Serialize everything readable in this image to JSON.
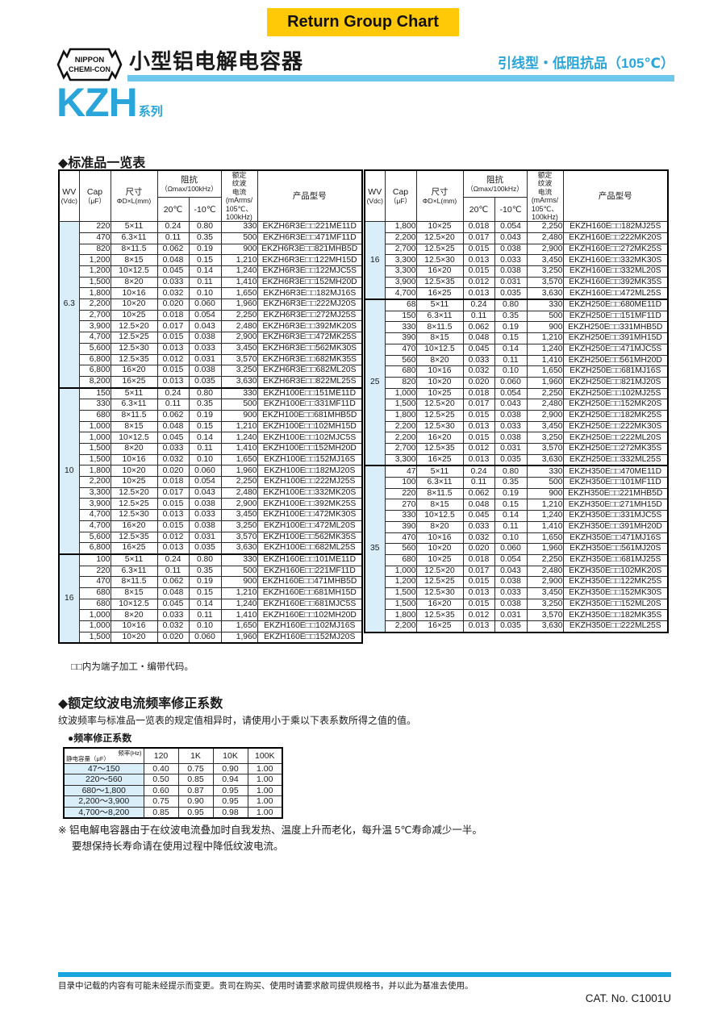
{
  "page": {
    "return_button": "Return Group Chart",
    "title": "小型铝电解电容器",
    "subtitle": "引线型・低阻抗品（105℃）",
    "series_name": "KZH",
    "series_suffix": "系列",
    "section1_title": "◆标准品一览表",
    "table_note": "□□内为端子加工・编带代码。",
    "section2_title": "◆额定纹波电流频率修正系数",
    "section2_desc": "纹波频率与标准品一览表的规定值相异时，请使用小于乘以下表系数所得之值的值。",
    "freq_label": "●频率修正系数",
    "note_line1": "※ 铝电解电容器由于在纹波电流叠加时自我发热、温度上升而老化，每升温 5℃寿命减少一半。",
    "note_line2": "要想保持长寿命请在使用过程中降低纹波电流。",
    "footer_disclaimer": "目录中记载的内容有可能未经提示而变更。贵司在购买、使用时请要求敝司提供规格书，并以此为基准去使用。",
    "footer_cat": "CAT. No. C1001U"
  },
  "logo": {
    "line1": "NIPPON",
    "line2": "CHEMI-CON"
  },
  "colors": {
    "accent_cyan": "#29a5da",
    "bar_cyan": "#6fc7ec",
    "footer_cyan": "#18a5de",
    "button_yellow": "#ffc908",
    "cell_blue": "#d9eef9"
  },
  "spec_header": {
    "wv_l1": "WV",
    "wv_l2": "(Vdc)",
    "cap_l1": "Cap",
    "cap_l2": "（μF）",
    "size_l1": "尺寸",
    "size_l2": "ΦD×L(mm)",
    "imp_l1": "阻抗",
    "imp_l2": "（Ωmax/100kHz）",
    "t20": "20℃",
    "t10": "-10℃",
    "ripple": "额定\n纹波\n电流\n(mArms/\n105℃、\n100kHz)",
    "part": "产品型号"
  },
  "spec_tables": {
    "left": {
      "groups": [
        {
          "wv": "6.3",
          "rows": [
            [
              "220",
              "5×11",
              "0.24",
              "0.80",
              "330",
              "EKZH6R3E□□221ME11D"
            ],
            [
              "470",
              "6.3×11",
              "0.11",
              "0.35",
              "500",
              "EKZH6R3E□□471MF11D"
            ],
            [
              "820",
              "8×11.5",
              "0.062",
              "0.19",
              "900",
              "EKZH6R3E□□821MHB5D"
            ],
            [
              "1,200",
              "8×15",
              "0.048",
              "0.15",
              "1,210",
              "EKZH6R3E□□122MH15D"
            ],
            [
              "1,200",
              "10×12.5",
              "0.045",
              "0.14",
              "1,240",
              "EKZH6R3E□□122MJC5S"
            ],
            [
              "1,500",
              "8×20",
              "0.033",
              "0.11",
              "1,410",
              "EKZH6R3E□□152MH20D"
            ],
            [
              "1,800",
              "10×16",
              "0.032",
              "0.10",
              "1,650",
              "EKZH6R3E□□182MJ16S"
            ],
            [
              "2,200",
              "10×20",
              "0.020",
              "0.060",
              "1,960",
              "EKZH6R3E□□222MJ20S"
            ],
            [
              "2,700",
              "10×25",
              "0.018",
              "0.054",
              "2,250",
              "EKZH6R3E□□272MJ25S"
            ],
            [
              "3,900",
              "12.5×20",
              "0.017",
              "0.043",
              "2,480",
              "EKZH6R3E□□392MK20S"
            ],
            [
              "4,700",
              "12.5×25",
              "0.015",
              "0.038",
              "2,900",
              "EKZH6R3E□□472MK25S"
            ],
            [
              "5,600",
              "12.5×30",
              "0.013",
              "0.033",
              "3,450",
              "EKZH6R3E□□562MK30S"
            ],
            [
              "6,800",
              "12.5×35",
              "0.012",
              "0.031",
              "3,570",
              "EKZH6R3E□□682MK35S"
            ],
            [
              "6,800",
              "16×20",
              "0.015",
              "0.038",
              "3,250",
              "EKZH6R3E□□682ML20S"
            ],
            [
              "8,200",
              "16×25",
              "0.013",
              "0.035",
              "3,630",
              "EKZH6R3E□□822ML25S"
            ]
          ]
        },
        {
          "wv": "10",
          "rows": [
            [
              "150",
              "5×11",
              "0.24",
              "0.80",
              "330",
              "EKZH100E□□151ME11D"
            ],
            [
              "330",
              "6.3×11",
              "0.11",
              "0.35",
              "500",
              "EKZH100E□□331MF11D"
            ],
            [
              "680",
              "8×11.5",
              "0.062",
              "0.19",
              "900",
              "EKZH100E□□681MHB5D"
            ],
            [
              "1,000",
              "8×15",
              "0.048",
              "0.15",
              "1,210",
              "EKZH100E□□102MH15D"
            ],
            [
              "1,000",
              "10×12.5",
              "0.045",
              "0.14",
              "1,240",
              "EKZH100E□□102MJC5S"
            ],
            [
              "1,500",
              "8×20",
              "0.033",
              "0.11",
              "1,410",
              "EKZH100E□□152MH20D"
            ],
            [
              "1,500",
              "10×16",
              "0.032",
              "0.10",
              "1,650",
              "EKZH100E□□152MJ16S"
            ],
            [
              "1,800",
              "10×20",
              "0.020",
              "0.060",
              "1,960",
              "EKZH100E□□182MJ20S"
            ],
            [
              "2,200",
              "10×25",
              "0.018",
              "0.054",
              "2,250",
              "EKZH100E□□222MJ25S"
            ],
            [
              "3,300",
              "12.5×20",
              "0.017",
              "0.043",
              "2,480",
              "EKZH100E□□332MK20S"
            ],
            [
              "3,900",
              "12.5×25",
              "0.015",
              "0.038",
              "2,900",
              "EKZH100E□□392MK25S"
            ],
            [
              "4,700",
              "12.5×30",
              "0.013",
              "0.033",
              "3,450",
              "EKZH100E□□472MK30S"
            ],
            [
              "4,700",
              "16×20",
              "0.015",
              "0.038",
              "3,250",
              "EKZH100E□□472ML20S"
            ],
            [
              "5,600",
              "12.5×35",
              "0.012",
              "0.031",
              "3,570",
              "EKZH100E□□562MK35S"
            ],
            [
              "6,800",
              "16×25",
              "0.013",
              "0.035",
              "3,630",
              "EKZH100E□□682ML25S"
            ]
          ]
        },
        {
          "wv": "16",
          "rows": [
            [
              "100",
              "5×11",
              "0.24",
              "0.80",
              "330",
              "EKZH160E□□101ME11D"
            ],
            [
              "220",
              "6.3×11",
              "0.11",
              "0.35",
              "500",
              "EKZH160E□□221MF11D"
            ],
            [
              "470",
              "8×11.5",
              "0.062",
              "0.19",
              "900",
              "EKZH160E□□471MHB5D"
            ],
            [
              "680",
              "8×15",
              "0.048",
              "0.15",
              "1,210",
              "EKZH160E□□681MH15D"
            ],
            [
              "680",
              "10×12.5",
              "0.045",
              "0.14",
              "1,240",
              "EKZH160E□□681MJC5S"
            ],
            [
              "1,000",
              "8×20",
              "0.033",
              "0.11",
              "1,410",
              "EKZH160E□□102MH20D"
            ],
            [
              "1,000",
              "10×16",
              "0.032",
              "0.10",
              "1,650",
              "EKZH160E□□102MJ16S"
            ],
            [
              "1,500",
              "10×20",
              "0.020",
              "0.060",
              "1,960",
              "EKZH160E□□152MJ20S"
            ]
          ]
        }
      ]
    },
    "right": {
      "groups": [
        {
          "wv": "16",
          "rows": [
            [
              "1,800",
              "10×25",
              "0.018",
              "0.054",
              "2,250",
              "EKZH160E□□182MJ25S"
            ],
            [
              "2,200",
              "12.5×20",
              "0.017",
              "0.043",
              "2,480",
              "EKZH160E□□222MK20S"
            ],
            [
              "2,700",
              "12.5×25",
              "0.015",
              "0.038",
              "2,900",
              "EKZH160E□□272MK25S"
            ],
            [
              "3,300",
              "12.5×30",
              "0.013",
              "0.033",
              "3,450",
              "EKZH160E□□332MK30S"
            ],
            [
              "3,300",
              "16×20",
              "0.015",
              "0.038",
              "3,250",
              "EKZH160E□□332ML20S"
            ],
            [
              "3,900",
              "12.5×35",
              "0.012",
              "0.031",
              "3,570",
              "EKZH160E□□392MK35S"
            ],
            [
              "4,700",
              "16×25",
              "0.013",
              "0.035",
              "3,630",
              "EKZH160E□□472ML25S"
            ]
          ]
        },
        {
          "wv": "25",
          "rows": [
            [
              "68",
              "5×11",
              "0.24",
              "0.80",
              "330",
              "EKZH250E□□680ME11D"
            ],
            [
              "150",
              "6.3×11",
              "0.11",
              "0.35",
              "500",
              "EKZH250E□□151MF11D"
            ],
            [
              "330",
              "8×11.5",
              "0.062",
              "0.19",
              "900",
              "EKZH250E□□331MHB5D"
            ],
            [
              "390",
              "8×15",
              "0.048",
              "0.15",
              "1,210",
              "EKZH250E□□391MH15D"
            ],
            [
              "470",
              "10×12.5",
              "0.045",
              "0.14",
              "1,240",
              "EKZH250E□□471MJC5S"
            ],
            [
              "560",
              "8×20",
              "0.033",
              "0.11",
              "1,410",
              "EKZH250E□□561MH20D"
            ],
            [
              "680",
              "10×16",
              "0.032",
              "0.10",
              "1,650",
              "EKZH250E□□681MJ16S"
            ],
            [
              "820",
              "10×20",
              "0.020",
              "0.060",
              "1,960",
              "EKZH250E□□821MJ20S"
            ],
            [
              "1,000",
              "10×25",
              "0.018",
              "0.054",
              "2,250",
              "EKZH250E□□102MJ25S"
            ],
            [
              "1,500",
              "12.5×20",
              "0.017",
              "0.043",
              "2,480",
              "EKZH250E□□152MK20S"
            ],
            [
              "1,800",
              "12.5×25",
              "0.015",
              "0.038",
              "2,900",
              "EKZH250E□□182MK25S"
            ],
            [
              "2,200",
              "12.5×30",
              "0.013",
              "0.033",
              "3,450",
              "EKZH250E□□222MK30S"
            ],
            [
              "2,200",
              "16×20",
              "0.015",
              "0.038",
              "3,250",
              "EKZH250E□□222ML20S"
            ],
            [
              "2,700",
              "12.5×35",
              "0.012",
              "0.031",
              "3,570",
              "EKZH250E□□272MK35S"
            ],
            [
              "3,300",
              "16×25",
              "0.013",
              "0.035",
              "3,630",
              "EKZH250E□□332ML25S"
            ]
          ]
        },
        {
          "wv": "35",
          "rows": [
            [
              "47",
              "5×11",
              "0.24",
              "0.80",
              "330",
              "EKZH350E□□470ME11D"
            ],
            [
              "100",
              "6.3×11",
              "0.11",
              "0.35",
              "500",
              "EKZH350E□□101MF11D"
            ],
            [
              "220",
              "8×11.5",
              "0.062",
              "0.19",
              "900",
              "EKZH350E□□221MHB5D"
            ],
            [
              "270",
              "8×15",
              "0.048",
              "0.15",
              "1,210",
              "EKZH350E□□271MH15D"
            ],
            [
              "330",
              "10×12.5",
              "0.045",
              "0.14",
              "1,240",
              "EKZH350E□□331MJC5S"
            ],
            [
              "390",
              "8×20",
              "0.033",
              "0.11",
              "1,410",
              "EKZH350E□□391MH20D"
            ],
            [
              "470",
              "10×16",
              "0.032",
              "0.10",
              "1,650",
              "EKZH350E□□471MJ16S"
            ],
            [
              "560",
              "10×20",
              "0.020",
              "0.060",
              "1,960",
              "EKZH350E□□561MJ20S"
            ],
            [
              "680",
              "10×25",
              "0.018",
              "0.054",
              "2,250",
              "EKZH350E□□681MJ25S"
            ],
            [
              "1,000",
              "12.5×20",
              "0.017",
              "0.043",
              "2,480",
              "EKZH350E□□102MK20S"
            ],
            [
              "1,200",
              "12.5×25",
              "0.015",
              "0.038",
              "2,900",
              "EKZH350E□□122MK25S"
            ],
            [
              "1,500",
              "12.5×30",
              "0.013",
              "0.033",
              "3,450",
              "EKZH350E□□152MK30S"
            ],
            [
              "1,500",
              "16×20",
              "0.015",
              "0.038",
              "3,250",
              "EKZH350E□□152ML20S"
            ],
            [
              "1,800",
              "12.5×35",
              "0.012",
              "0.031",
              "3,570",
              "EKZH350E□□182MK35S"
            ],
            [
              "2,200",
              "16×25",
              "0.013",
              "0.035",
              "3,630",
              "EKZH350E□□222ML25S"
            ]
          ]
        }
      ]
    }
  },
  "freq_table": {
    "corner_top": "频率(Hz)",
    "corner_bottom": "静电容量（μF）",
    "columns": [
      "120",
      "1K",
      "10K",
      "100K"
    ],
    "rows": [
      {
        "range": "47～150",
        "values": [
          "0.40",
          "0.75",
          "0.90",
          "1.00"
        ]
      },
      {
        "range": "220～560",
        "values": [
          "0.50",
          "0.85",
          "0.94",
          "1.00"
        ]
      },
      {
        "range": "680～1,800",
        "values": [
          "0.60",
          "0.87",
          "0.95",
          "1.00"
        ]
      },
      {
        "range": "2,200～3,900",
        "values": [
          "0.75",
          "0.90",
          "0.95",
          "1.00"
        ]
      },
      {
        "range": "4,700～8,200",
        "values": [
          "0.85",
          "0.95",
          "0.98",
          "1.00"
        ]
      }
    ]
  }
}
